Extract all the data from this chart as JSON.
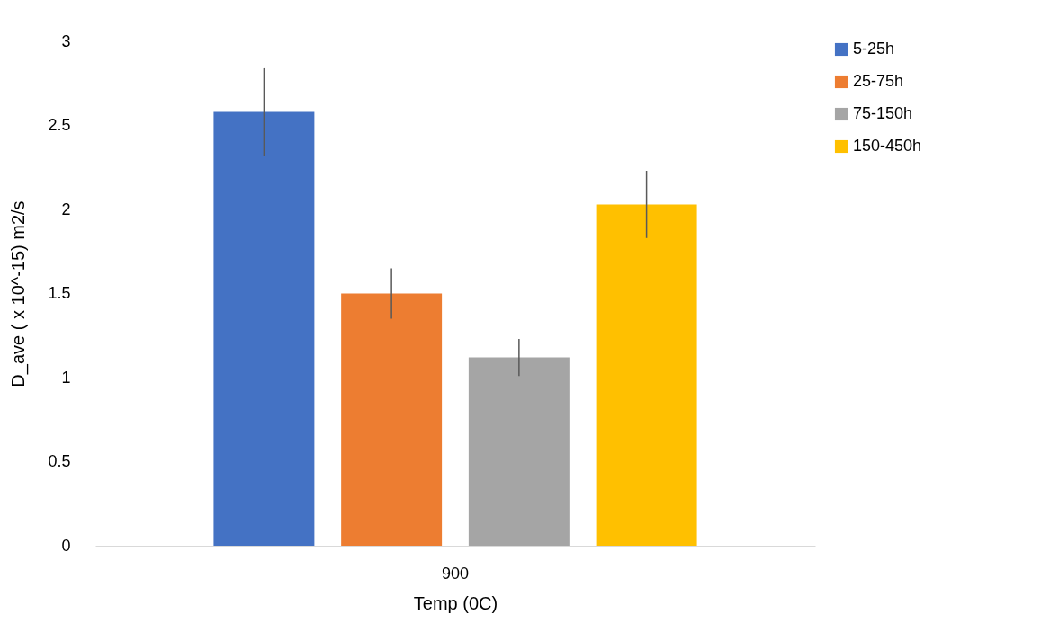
{
  "chart_data": {
    "type": "bar",
    "xlabel": "Temp (0C)",
    "ylabel": "D_ave ( x 10^-15) m2/s",
    "categories": [
      "900"
    ],
    "series": [
      {
        "name": "5-25h",
        "color": "#4472c4",
        "values": [
          2.58
        ],
        "errors": [
          0.26
        ]
      },
      {
        "name": "25-75h",
        "color": "#ed7d31",
        "values": [
          1.5
        ],
        "errors": [
          0.15
        ]
      },
      {
        "name": "75-150h",
        "color": "#a5a5a5",
        "values": [
          1.12
        ],
        "errors": [
          0.11
        ]
      },
      {
        "name": "150-450h",
        "color": "#ffc000",
        "values": [
          2.03
        ],
        "errors": [
          0.2
        ]
      }
    ],
    "ylim": [
      0,
      3
    ],
    "yticks": [
      0,
      0.5,
      1,
      1.5,
      2,
      2.5,
      3
    ],
    "grid": false,
    "legend": "right"
  }
}
